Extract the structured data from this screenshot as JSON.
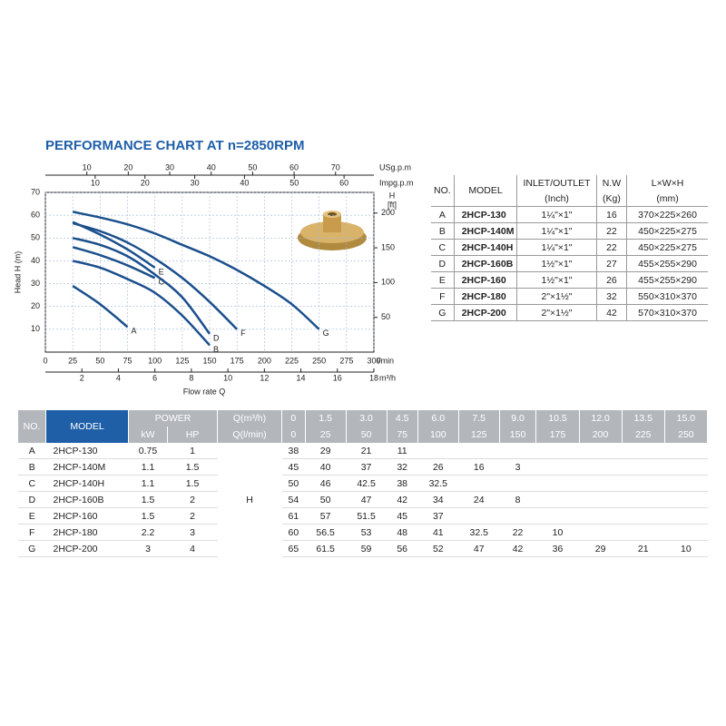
{
  "chart_data": {
    "type": "line",
    "title": "PERFORMANCE CHART AT n=2850RPM",
    "x": [
      25,
      50,
      75,
      100,
      125,
      150,
      175,
      200,
      225,
      250
    ],
    "xlim": [
      0,
      300
    ],
    "xticks": [
      0,
      25,
      50,
      75,
      100,
      125,
      150,
      175,
      200,
      225,
      250,
      275,
      300
    ],
    "xunit": "l/min",
    "xlabel": "Flow rate Q",
    "x2lim": [
      0,
      18
    ],
    "x2ticks": [
      2,
      4,
      6,
      8,
      10,
      12,
      14,
      16,
      18
    ],
    "x2unit": "m³/h",
    "x_top": [
      {
        "label": "USg.p.m",
        "lim": [
          0,
          79.25
        ],
        "ticks": [
          10,
          20,
          30,
          40,
          50,
          60,
          70
        ]
      },
      {
        "label": "Impg.p.m",
        "lim": [
          0,
          65.99
        ],
        "ticks": [
          10,
          20,
          30,
          40,
          50,
          60
        ]
      }
    ],
    "ylim": [
      0,
      70
    ],
    "yticks": [
      10,
      20,
      30,
      40,
      50,
      60,
      70
    ],
    "ylabel": "Head H (m)",
    "y2lim": [
      0,
      229.66
    ],
    "y2ticks": [
      50,
      100,
      150,
      200
    ],
    "y2title": "H",
    "y2unit": "[ft]",
    "grid": true,
    "series": [
      {
        "name": "A",
        "color": "#1b4f8c",
        "values": [
          29,
          21,
          11,
          null,
          null,
          null,
          null,
          null,
          null,
          null
        ]
      },
      {
        "name": "B",
        "color": "#1b4f8c",
        "values": [
          40,
          37,
          32,
          26,
          16,
          3,
          null,
          null,
          null,
          null
        ]
      },
      {
        "name": "C",
        "color": "#1b4f8c",
        "values": [
          46,
          42.5,
          38,
          32.5,
          null,
          null,
          null,
          null,
          null,
          null
        ]
      },
      {
        "name": "D",
        "color": "#1b4f8c",
        "values": [
          50,
          47,
          42,
          34,
          24,
          8,
          null,
          null,
          null,
          null
        ]
      },
      {
        "name": "E",
        "color": "#1b4f8c",
        "values": [
          57,
          51.5,
          45,
          37,
          null,
          null,
          null,
          null,
          null,
          null
        ]
      },
      {
        "name": "F",
        "color": "#1b4f8c",
        "values": [
          56.5,
          53,
          48,
          41,
          32.5,
          22,
          10,
          null,
          null,
          null
        ]
      },
      {
        "name": "G",
        "color": "#1b4f8c",
        "values": [
          61.5,
          59,
          56,
          52,
          47,
          42,
          36,
          29,
          21,
          10
        ]
      }
    ]
  },
  "model_table": {
    "header": [
      "NO.",
      "MODEL",
      "INLET/OUTLET",
      "N.W",
      "L×W×H"
    ],
    "units": [
      "(Inch)",
      "(Kg)",
      "(mm)"
    ],
    "rows": [
      [
        "A",
        "2HCP-130",
        "1¼\"×1\"",
        16,
        "370×225×260"
      ],
      [
        "B",
        "2HCP-140M",
        "1¼\"×1\"",
        22,
        "450×225×275"
      ],
      [
        "C",
        "2HCP-140H",
        "1¼\"×1\"",
        22,
        "450×225×275"
      ],
      [
        "D",
        "2HCP-160B",
        "1½\"×1\"",
        27,
        "455×255×290"
      ],
      [
        "E",
        "2HCP-160",
        "1½\"×1\"",
        26,
        "455×255×290"
      ],
      [
        "F",
        "2HCP-180",
        "2\"×1½\"",
        32,
        "550×310×370"
      ],
      [
        "G",
        "2HCP-200",
        "2\"×1½\"",
        42,
        "570×310×370"
      ]
    ]
  },
  "performance_table": {
    "header": {
      "no": "NO.",
      "model": "MODEL",
      "power": "POWER",
      "kw": "kW",
      "hp": "HP",
      "q_m3h": "Q(m³/h)",
      "q_lmin": "Q(l/min)",
      "head": "H",
      "q_m3h_values": [
        "0",
        "1.5",
        "3.0",
        "4.5",
        "6.0",
        "7.5",
        "9.0",
        "10.5",
        "12.0",
        "13.5",
        "15.0"
      ],
      "q_lmin_values": [
        "0",
        "25",
        "50",
        "75",
        "100",
        "125",
        "150",
        "175",
        "200",
        "225",
        "250"
      ]
    },
    "rows": [
      {
        "no": "A",
        "model": "2HCP-130",
        "kw": 0.75,
        "hp": 1,
        "values": [
          38,
          29,
          21,
          11
        ]
      },
      {
        "no": "B",
        "model": "2HCP-140M",
        "kw": 1.1,
        "hp": 1.5,
        "values": [
          45,
          40,
          37,
          32,
          26,
          16,
          3
        ]
      },
      {
        "no": "C",
        "model": "2HCP-140H",
        "kw": 1.1,
        "hp": 1.5,
        "values": [
          50,
          46,
          42.5,
          38,
          32.5
        ]
      },
      {
        "no": "D",
        "model": "2HCP-160B",
        "kw": 1.5,
        "hp": 2,
        "values": [
          54,
          50,
          47,
          42,
          34,
          24,
          8
        ]
      },
      {
        "no": "E",
        "model": "2HCP-160",
        "kw": 1.5,
        "hp": 2,
        "values": [
          61,
          57,
          51.5,
          45,
          37
        ]
      },
      {
        "no": "F",
        "model": "2HCP-180",
        "kw": 2.2,
        "hp": 3,
        "values": [
          60,
          56.5,
          53,
          48,
          41,
          32.5,
          22,
          10
        ]
      },
      {
        "no": "G",
        "model": "2HCP-200",
        "kw": 3,
        "hp": 4,
        "values": [
          65,
          61.5,
          59,
          56,
          52,
          47,
          42,
          36,
          29,
          21,
          10
        ]
      }
    ]
  }
}
